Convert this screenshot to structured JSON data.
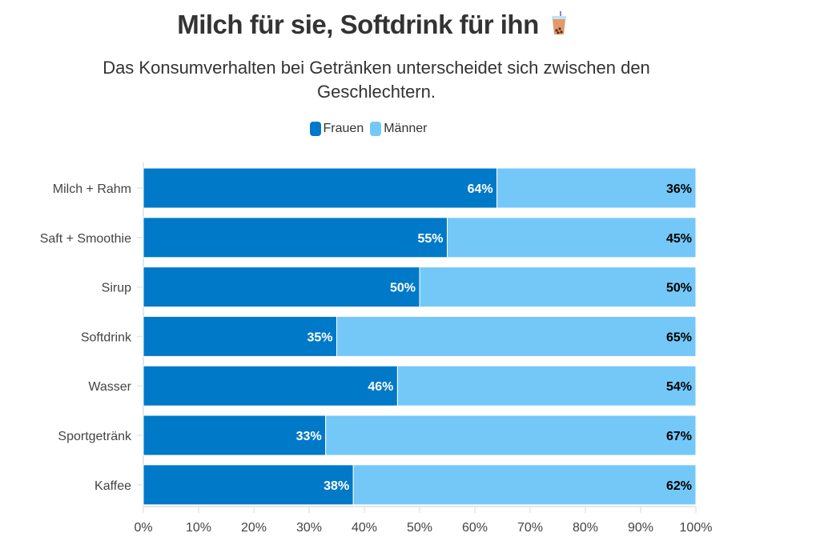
{
  "chart_data": {
    "type": "bar",
    "orientation": "horizontal",
    "stacked": true,
    "title": "Milch für sie, Softdrink für ihn",
    "title_icon": "bubble-tea-icon",
    "subtitle": "Das Konsumverhalten bei Getränken unterscheidet sich zwischen den Geschlechtern.",
    "categories": [
      "Milch + Rahm",
      "Saft + Smoothie",
      "Sirup",
      "Softdrink",
      "Wasser",
      "Sportgetränk",
      "Kaffee"
    ],
    "series": [
      {
        "name": "Frauen",
        "color": "#0079C8",
        "values": [
          64,
          55,
          50,
          35,
          46,
          33,
          38
        ]
      },
      {
        "name": "Männer",
        "color": "#73C8F8",
        "values": [
          36,
          45,
          50,
          65,
          54,
          67,
          62
        ]
      }
    ],
    "xlim": [
      0,
      100
    ],
    "xticks": [
      "0%",
      "10%",
      "20%",
      "30%",
      "40%",
      "50%",
      "60%",
      "70%",
      "80%",
      "90%",
      "100%"
    ],
    "legend_position": "top",
    "grid": false,
    "data_label_suffix": "%"
  }
}
